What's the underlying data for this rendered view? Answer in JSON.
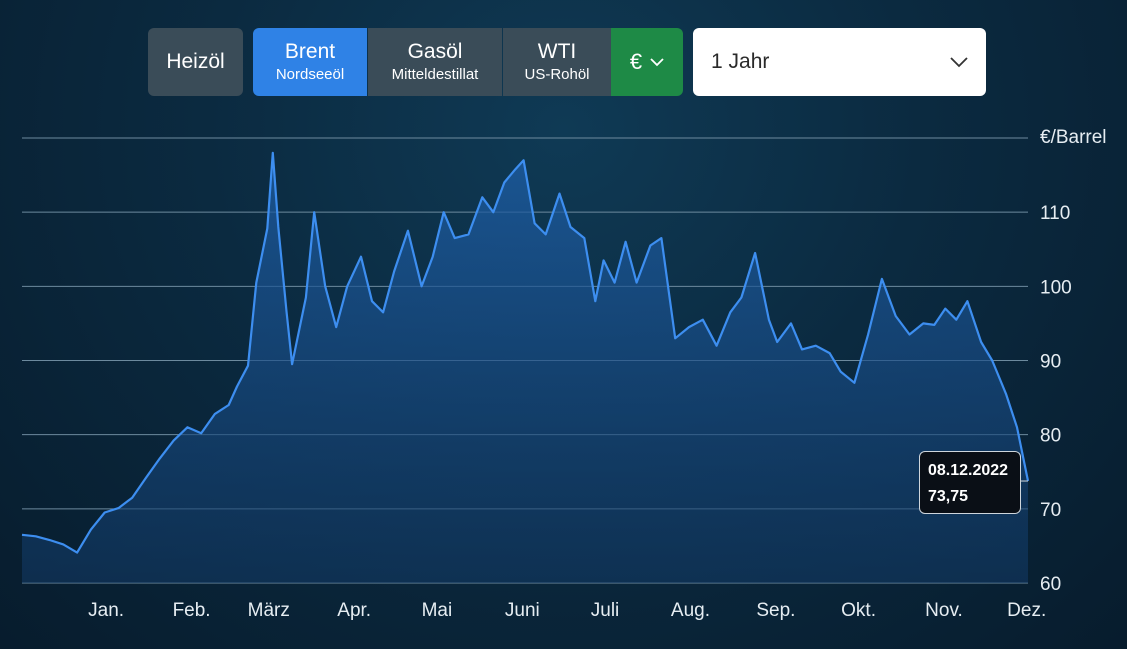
{
  "toolbar": {
    "heizoel": "Heizöl",
    "brent": {
      "main": "Brent",
      "sub": "Nordseeöl"
    },
    "gasoel": {
      "main": "Gasöl",
      "sub": "Mitteldestillat"
    },
    "wti": {
      "main": "WTI",
      "sub": "US-Rohöl"
    },
    "currency": "€",
    "period": "1 Jahr"
  },
  "colors": {
    "line": "#3d8ef0",
    "active": "#2f82e6",
    "currency": "#1e8a46"
  },
  "chart_data": {
    "type": "area",
    "ylabel": "€/Barrel",
    "ylim": [
      60,
      120
    ],
    "yticks": [
      60,
      70,
      80,
      90,
      100,
      110
    ],
    "x_labels": [
      "Jan.",
      "Feb.",
      "März",
      "Apr.",
      "Mai",
      "Juni",
      "Juli",
      "Aug.",
      "Sep.",
      "Okt.",
      "Nov.",
      "Dez."
    ],
    "series": [
      {
        "x": [
          "2021-12-08",
          "2021-12-13",
          "2021-12-18",
          "2021-12-23",
          "2021-12-28",
          "2022-01-02",
          "2022-01-07",
          "2022-01-12",
          "2022-01-17",
          "2022-01-22",
          "2022-01-27",
          "2022-02-01",
          "2022-02-06",
          "2022-02-11",
          "2022-02-16",
          "2022-02-21",
          "2022-02-24",
          "2022-02-28",
          "2022-03-03",
          "2022-03-07",
          "2022-03-09",
          "2022-03-11",
          "2022-03-14",
          "2022-03-16",
          "2022-03-21",
          "2022-03-24",
          "2022-03-28",
          "2022-04-01",
          "2022-04-05",
          "2022-04-10",
          "2022-04-14",
          "2022-04-18",
          "2022-04-22",
          "2022-04-27",
          "2022-05-02",
          "2022-05-06",
          "2022-05-10",
          "2022-05-14",
          "2022-05-19",
          "2022-05-24",
          "2022-05-28",
          "2022-06-01",
          "2022-06-05",
          "2022-06-08",
          "2022-06-12",
          "2022-06-16",
          "2022-06-21",
          "2022-06-25",
          "2022-06-30",
          "2022-07-04",
          "2022-07-07",
          "2022-07-11",
          "2022-07-15",
          "2022-07-19",
          "2022-07-24",
          "2022-07-28",
          "2022-08-02",
          "2022-08-07",
          "2022-08-12",
          "2022-08-17",
          "2022-08-22",
          "2022-08-26",
          "2022-08-31",
          "2022-09-05",
          "2022-09-08",
          "2022-09-13",
          "2022-09-17",
          "2022-09-22",
          "2022-09-27",
          "2022-10-01",
          "2022-10-06",
          "2022-10-11",
          "2022-10-16",
          "2022-10-21",
          "2022-10-26",
          "2022-10-31",
          "2022-11-04",
          "2022-11-08",
          "2022-11-12",
          "2022-11-16",
          "2022-11-21",
          "2022-11-25",
          "2022-11-30",
          "2022-12-04",
          "2022-12-08"
        ],
        "values": [
          66.5,
          66.3,
          65.8,
          65.2,
          64.1,
          67.2,
          69.5,
          70.1,
          71.5,
          74.2,
          76.8,
          79.2,
          81.0,
          80.2,
          82.8,
          84.0,
          86.5,
          89.3,
          100.5,
          107.8,
          118.0,
          108.0,
          96.5,
          89.5,
          98.5,
          110.0,
          100.0,
          94.5,
          100.0,
          104.0,
          98.0,
          96.5,
          102.0,
          107.5,
          100.0,
          104.0,
          110.0,
          106.5,
          107.0,
          112.0,
          110.0,
          114.0,
          115.8,
          117.0,
          108.5,
          107.0,
          112.5,
          108.0,
          106.5,
          98.0,
          103.5,
          100.5,
          106.0,
          100.5,
          105.5,
          106.5,
          93.0,
          94.5,
          95.5,
          92.0,
          96.5,
          98.5,
          104.5,
          95.5,
          92.5,
          95.0,
          91.5,
          92.0,
          91.0,
          88.5,
          87.0,
          93.5,
          101.0,
          96.0,
          93.5,
          95.0,
          94.8,
          97.0,
          95.5,
          98.0,
          92.5,
          90.0,
          85.5,
          81.0,
          73.75
        ]
      }
    ],
    "tooltip": {
      "date": "08.12.2022",
      "value": "73,75"
    }
  }
}
